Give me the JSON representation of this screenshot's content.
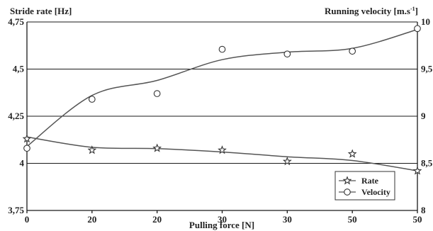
{
  "chart_data": {
    "type": "line",
    "title_left": "Stride rate [Hz]",
    "title_right": "Running velocity [m.s",
    "title_right_sup": "-1",
    "title_right_close": "]",
    "xlabel": "Pulling force [N]",
    "x_tick_labels": [
      "0",
      "20",
      "20",
      "30",
      "30",
      "50",
      "50"
    ],
    "y_left": {
      "ticks": [
        3.75,
        4,
        4.25,
        4.5,
        4.75
      ],
      "tick_labels": [
        "3,75",
        "4",
        "4,25",
        "4,5",
        "4,75"
      ],
      "range": [
        3.75,
        4.75
      ]
    },
    "y_right": {
      "ticks": [
        8,
        8.5,
        9,
        9.5,
        10
      ],
      "tick_labels": [
        "8",
        "8,5",
        "9",
        "9,5",
        "10"
      ],
      "range": [
        8,
        10
      ]
    },
    "grid": {
      "horizontal": true,
      "vertical": false
    },
    "legend_position": "bottom-right",
    "series": [
      {
        "name": "Rate",
        "axis": "left",
        "marker": "star",
        "values": [
          4.13,
          4.07,
          4.08,
          4.07,
          4.01,
          4.05,
          3.96
        ],
        "trend": [
          4.14,
          4.085,
          4.078,
          4.06,
          4.035,
          4.015,
          3.96
        ]
      },
      {
        "name": "Velocity",
        "axis": "right",
        "marker": "circle",
        "values": [
          8.66,
          9.18,
          9.24,
          9.71,
          9.66,
          9.69,
          9.93
        ],
        "trend": [
          8.68,
          9.22,
          9.38,
          9.6,
          9.68,
          9.72,
          9.92
        ]
      }
    ]
  }
}
